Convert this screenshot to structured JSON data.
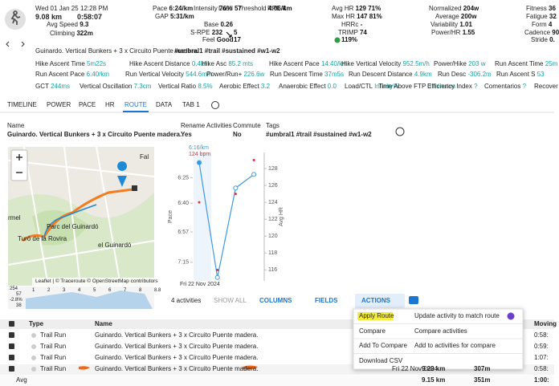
{
  "header": {
    "date": "Wed 01 Jan 25",
    "time": "12:28 PM",
    "distance": "9.08 km",
    "duration": "0:58:07",
    "stats": [
      {
        "label": "Avg Speed",
        "value": "9.3"
      },
      {
        "label": "Climbing",
        "value": "322m"
      },
      {
        "label": "Pace",
        "value": "6:24/km"
      },
      {
        "label": "GAP",
        "value": "5:31/km"
      },
      {
        "label": "Intensity",
        "value": "76%"
      },
      {
        "label": "Load",
        "value": "57"
      },
      {
        "label": "Threshold",
        "value": "4:06/km"
      },
      {
        "label": "RPE",
        "value": "4"
      },
      {
        "label": "Base",
        "value": "0.26"
      },
      {
        "label": "S-RPE",
        "value": "232"
      },
      {
        "label": "Feel",
        "value": "Good"
      },
      {
        "label": "Avg HR",
        "value": "129 71%"
      },
      {
        "label": "Max HR",
        "value": "147 81%"
      },
      {
        "label": "HRRc",
        "value": "-"
      },
      {
        "label": "TRIMP",
        "value": "74"
      },
      {
        "label": "Normalized",
        "value": "204w"
      },
      {
        "label": "Average",
        "value": "200w"
      },
      {
        "label": "Variability",
        "value": "1.01"
      },
      {
        "label": "Power/HR",
        "value": "1.55"
      },
      {
        "label": "Fitness",
        "value": "36"
      },
      {
        "label": "Fatigue",
        "value": "32"
      },
      {
        "label": "Form",
        "value": "4"
      },
      {
        "label": "Cadence",
        "value": "90"
      },
      {
        "label": "Stride",
        "value": "0."
      }
    ],
    "srpe_extra": "5",
    "feel_extra": "17",
    "hr_extra": "119%"
  },
  "title": {
    "name": "Guinardo. Vertical Bunkers + 3 x Circuito Puente madera.",
    "tags": "#umbral1 #trail #sustained #w1-w2"
  },
  "metrics": [
    [
      {
        "label": "Hike Ascent Time",
        "value": "5m22s"
      },
      {
        "label": "Hike Ascent Distance",
        "value": "0.4km"
      },
      {
        "label": "Hike Asc",
        "value": "85.2 mts"
      },
      {
        "label": "Hike Ascent Pace",
        "value": "14:40/km"
      },
      {
        "label": "Hike Vertical Velocity",
        "value": "952.5m/h"
      },
      {
        "label": "Power/Hike",
        "value": "203 w"
      },
      {
        "label": "Run Ascent Time",
        "value": "25m"
      }
    ],
    [
      {
        "label": "Run Ascent Pace",
        "value": "6:40/km"
      },
      {
        "label": "Run Vertical Velocity",
        "value": "544.6m/h"
      },
      {
        "label": "Power/Run+",
        "value": "226.6w"
      },
      {
        "label": "Run Descent Time",
        "value": "37m5s"
      },
      {
        "label": "Run Descent Distance",
        "value": "4.9km"
      },
      {
        "label": "Run Desc",
        "value": "-306.2m"
      },
      {
        "label": "Run Ascent S",
        "value": "53"
      }
    ],
    [
      {
        "label": "GCT",
        "value": "244ms"
      },
      {
        "label": "Vertical Oscillation",
        "value": "7.3cm"
      },
      {
        "label": "Vertical Ratio",
        "value": "8.5%"
      },
      {
        "label": "Aerobic Effect",
        "value": "3.2"
      },
      {
        "label": "Anaerobic Effect",
        "value": "0.0"
      },
      {
        "label": "Load/CTL",
        "value": "Infinity%"
      },
      {
        "label": "Time Above FTP",
        "value": "0 minutes"
      },
      {
        "label": "Efficiency Index",
        "value": "?"
      },
      {
        "label": "Comentarios",
        "value": "?"
      },
      {
        "label": "Recover",
        "value": ""
      }
    ]
  ],
  "tabs": [
    "TIMELINE",
    "POWER",
    "PACE",
    "HR",
    "ROUTE",
    "DATA",
    "TAB 1"
  ],
  "fields": [
    {
      "label": "Name",
      "value": "Guinardo. Vertical Bunkers + 3 x Circuito Puente madera."
    },
    {
      "label": "Rename Activities",
      "value": "Yes"
    },
    {
      "label": "Commute",
      "value": "No"
    },
    {
      "label": "Tags",
      "value": "#umbral1 #trail #sustained #w1-w2"
    }
  ],
  "map": {
    "labels": [
      "rmel",
      "Parc del Guinardó",
      "Turó de la Rovira",
      "el Guinardó",
      "Fal"
    ],
    "attribution": "Leaflet | © Traceroute © OpenStreetMap contributors",
    "strip": [
      "254",
      "57",
      "-2.8%",
      "38",
      "1",
      "2",
      "3",
      "4",
      "5",
      "6",
      "7",
      "8",
      "8.8"
    ]
  },
  "chart": {
    "hover_pace": "6:16/km",
    "hover_hr": "124 bpm",
    "date": "Fri 22 Nov 2024",
    "y_label": "Pace",
    "y2_label": "Avg HR",
    "ylim": [
      370,
      446
    ],
    "yticks": [
      {
        "value": 385,
        "label": "6:25"
      },
      {
        "value": 400,
        "label": "6:40"
      },
      {
        "value": 417,
        "label": "6:57"
      },
      {
        "value": 435,
        "label": "7:15"
      }
    ],
    "y2lim": [
      114.7,
      129.9
    ],
    "y2ticks": [
      116,
      118,
      120,
      122,
      124,
      126,
      128
    ],
    "pace": {
      "color": "#3b9ae1",
      "values": [
        376,
        444,
        391,
        383
      ]
    },
    "hr": {
      "color": "#e0313b",
      "values": [
        124,
        116,
        125,
        129
      ]
    }
  },
  "toolbar": {
    "count": "4 activities",
    "show_all": "SHOW ALL",
    "columns": "COLUMNS",
    "fields": "FIELDS",
    "actions": "ACTIONS"
  },
  "table": {
    "columns": [
      "Type",
      "Name",
      "Moving"
    ],
    "rows": [
      {
        "type": "Trail Run",
        "name": "Guinardo. Vertical Bunkers + 3 x Circuito Puente madera.",
        "moving": "0:58:"
      },
      {
        "type": "Trail Run",
        "name": "Guinardo. Vertical Bunkers + 3 x Circuito Puente madera.",
        "moving": "0:59:"
      },
      {
        "type": "Trail Run",
        "name": "Guinardo. Vertical Bunkers + 3 x Circuito Puente madera.",
        "moving": "1:07:"
      },
      {
        "type": "Trail Run",
        "name": "Guinardo. Vertical Bunkers + 3 x Circuito Puente madera.",
        "date": "Fri 22 Nov 2024",
        "distance": "9.29 km",
        "elevation": "307m",
        "moving": "0:58:"
      }
    ],
    "avg": {
      "label": "Avg",
      "distance": "9.15 km",
      "elevation": "351m",
      "moving": "1:00:"
    }
  },
  "menu": [
    {
      "action": "Apply Route",
      "description": "Update activity to match route"
    },
    {
      "action": "Compare",
      "description": "Compare activities"
    },
    {
      "action": "Add To Compare",
      "description": "Add to activities for compare"
    },
    {
      "action": "Download CSV"
    }
  ]
}
